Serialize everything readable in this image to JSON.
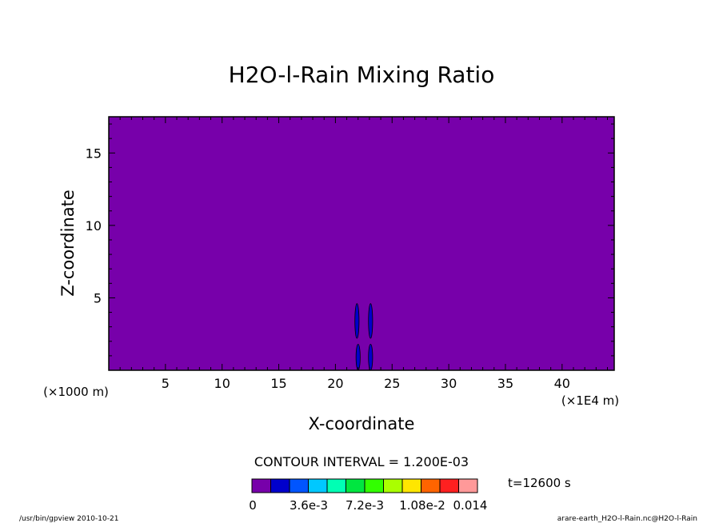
{
  "chart_data": {
    "type": "heatmap",
    "title": "H2O-l-Rain Mixing Ratio",
    "xlabel": "X-coordinate",
    "ylabel": "Z-coordinate",
    "x_unit_left": "(×1000 m)",
    "x_unit_right": "(×1E4 m)",
    "xlim": [
      0,
      44.6
    ],
    "ylim": [
      0,
      17.5
    ],
    "x_ticks": [
      5,
      10,
      15,
      20,
      25,
      30,
      35,
      40
    ],
    "y_ticks": [
      5,
      10,
      15
    ],
    "background_level_color": "#7700aa",
    "features": [
      {
        "x": 21.9,
        "z_min": 2.2,
        "z_max": 4.6,
        "level": 1
      },
      {
        "x": 22.0,
        "z_min": 0.0,
        "z_max": 1.8,
        "level": 1
      },
      {
        "x": 23.1,
        "z_min": 2.2,
        "z_max": 4.6,
        "level": 1
      },
      {
        "x": 23.1,
        "z_min": 0.0,
        "z_max": 1.8,
        "level": 1
      }
    ],
    "contour_interval_text": "CONTOUR INTERVAL = 1.200E-03",
    "colorbar": {
      "colors": [
        "#7700aa",
        "#0000cc",
        "#0055ff",
        "#00c8ff",
        "#00ffb4",
        "#00e640",
        "#32ff00",
        "#aaff00",
        "#ffe600",
        "#ff6400",
        "#ff2020",
        "#ff9999"
      ],
      "labels": [
        "0",
        "3.6e-3",
        "7.2e-3",
        "1.08e-2",
        "0.014"
      ]
    }
  },
  "time_label": "t=12600 s",
  "footer": {
    "left": "/usr/bin/gpview   2010-10-21",
    "right": "arare-earth_H2O-l-Rain.nc@H2O-l-Rain"
  }
}
